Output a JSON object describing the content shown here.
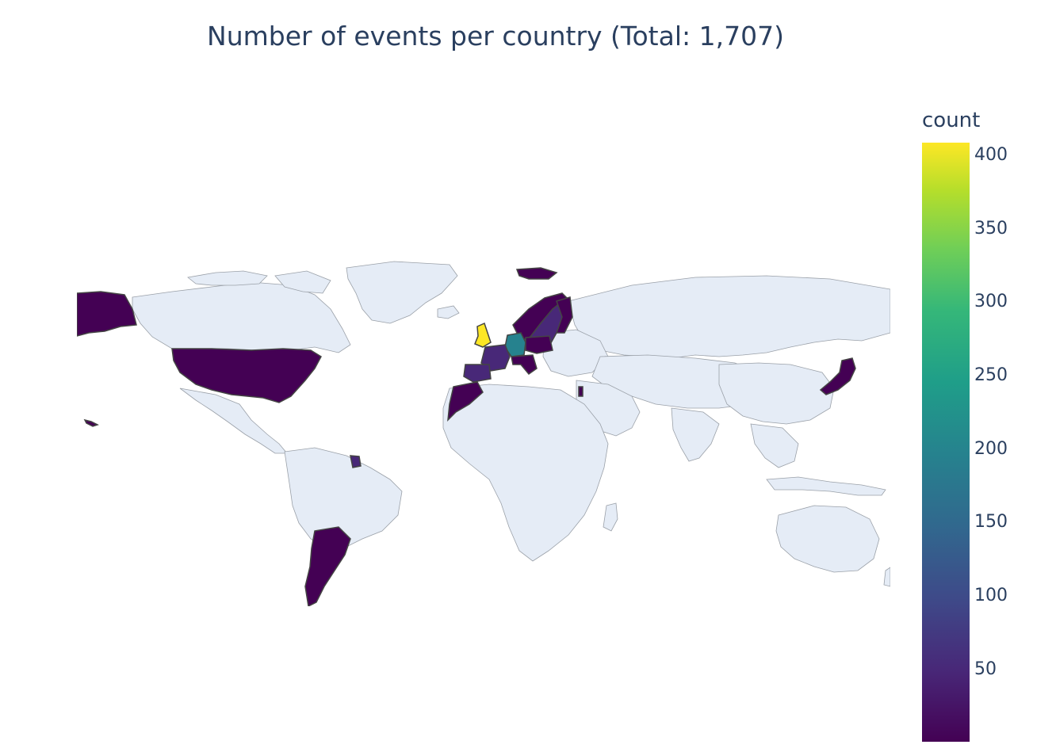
{
  "title": "Number of events per country (Total: 1,707)",
  "colorbar": {
    "title": "count",
    "ticks": [
      "400",
      "350",
      "300",
      "250",
      "200",
      "150",
      "100",
      "50"
    ],
    "tick_values": [
      400,
      350,
      300,
      250,
      200,
      150,
      100,
      50
    ],
    "range": [
      1,
      410
    ],
    "colorscale": "Viridis"
  },
  "map": {
    "projection": "equirectangular",
    "land_color": "#e5ecf6",
    "border_color": "#999999",
    "highlight_border": "#444444",
    "highlighted_regions": [
      {
        "name": "United Kingdom",
        "value": 410
      },
      {
        "name": "Germany",
        "value": 230
      },
      {
        "name": "Sweden",
        "value": 60
      },
      {
        "name": "France",
        "value": 50
      },
      {
        "name": "Spain",
        "value": 30
      },
      {
        "name": "Norway",
        "value": 20
      },
      {
        "name": "Finland",
        "value": 15
      },
      {
        "name": "Italy",
        "value": 15
      },
      {
        "name": "Svalbard",
        "value": 10
      },
      {
        "name": "United States",
        "value": 10
      },
      {
        "name": "Argentina",
        "value": 8
      },
      {
        "name": "Japan",
        "value": 5
      },
      {
        "name": "Morocco",
        "value": 5
      },
      {
        "name": "Israel",
        "value": 3
      },
      {
        "name": "French Guiana",
        "value": 2
      }
    ]
  }
}
